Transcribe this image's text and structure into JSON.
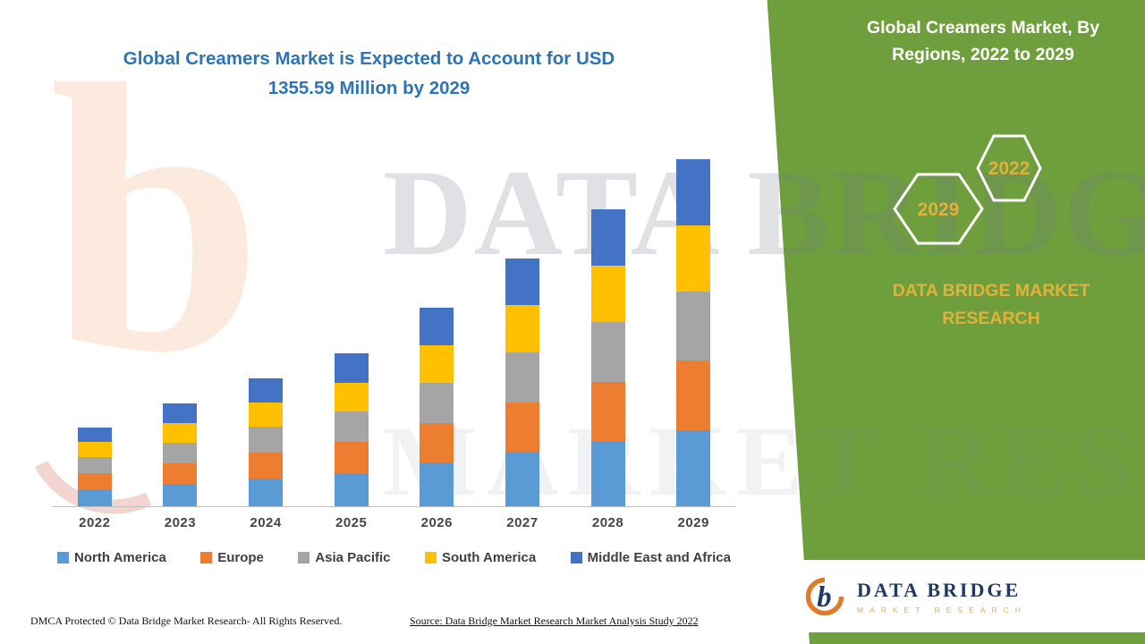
{
  "headline": "Global Creamers Market is Expected to Account for USD 1355.59 Million by 2029",
  "side_panel": {
    "title": "Global Creamers Market, By Regions, 2022 to 2029",
    "badge_back": "2029",
    "badge_front": "2022",
    "brand_text": "DATA BRIDGE MARKET RESEARCH",
    "bg_color": "#6F9F3D",
    "gold_color": "#E2B13C"
  },
  "watermark": {
    "letter": "b",
    "line1": "DATA BRIDGE",
    "line2": "MARKET RESEARCH"
  },
  "footer": {
    "dmca": "DMCA Protected © Data Bridge Market Research- All Rights Reserved.",
    "source": "Source: Data Bridge Market Research Market Analysis Study 2022"
  },
  "logo_box": {
    "name": "DATA BRIDGE",
    "tagline": "MARKET RESEARCH"
  },
  "chart_data": {
    "type": "bar",
    "stacked": true,
    "title": "Global Creamers Market is Expected to Account for USD 1355.59 Million by 2029",
    "unit": "USD Million",
    "categories": [
      "2022",
      "2023",
      "2024",
      "2025",
      "2026",
      "2027",
      "2028",
      "2029"
    ],
    "series": [
      {
        "name": "North America",
        "color": "#5B9BD5",
        "values": [
          68,
          88,
          110,
          131,
          171,
          213,
          255,
          298
        ]
      },
      {
        "name": "Europe",
        "color": "#ED7D31",
        "values": [
          62,
          80,
          100,
          119,
          155,
          194,
          232,
          271
        ]
      },
      {
        "name": "Asia Pacific",
        "color": "#A5A5A5",
        "values": [
          62,
          80,
          100,
          119,
          155,
          194,
          232,
          271
        ]
      },
      {
        "name": "South America",
        "color": "#FFC000",
        "values": [
          59,
          76,
          95,
          113,
          148,
          184,
          220,
          258
        ]
      },
      {
        "name": "Middle East and Africa",
        "color": "#4472C4",
        "values": [
          58,
          77,
          95,
          114,
          148,
          184,
          221,
          257.59
        ]
      }
    ],
    "totals": [
      309,
      401,
      500,
      596,
      777,
      969,
      1160,
      1355.59
    ],
    "legend_position": "bottom",
    "y_axis_visible": false,
    "gridlines": false
  }
}
